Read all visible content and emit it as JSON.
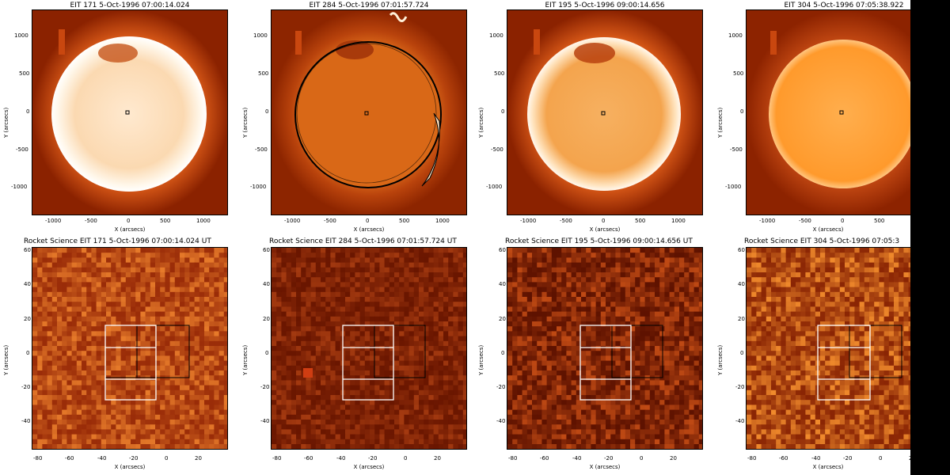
{
  "top_row": [
    {
      "title": "EIT 171  5-Oct-1996 07:00:14.024",
      "xlabel": "X (arcsecs)",
      "ylabel": "Y (arcsecs)",
      "xticks": [
        "-1000",
        "-500",
        "0",
        "500",
        "1000"
      ],
      "yticks": [
        "1000",
        "500",
        "0",
        "-500",
        "-1000"
      ]
    },
    {
      "title": "EIT 284  5-Oct-1996 07:01:57.724",
      "xlabel": "X (arcsecs)",
      "ylabel": "Y (arcsecs)",
      "xticks": [
        "-1000",
        "-500",
        "0",
        "500",
        "1000"
      ],
      "yticks": [
        "1000",
        "500",
        "0",
        "-500",
        "-1000"
      ]
    },
    {
      "title": "EIT 195  5-Oct-1996 09:00:14.656",
      "xlabel": "X (arcsecs)",
      "ylabel": "Y (arcsecs)",
      "xticks": [
        "-1000",
        "-500",
        "0",
        "500",
        "1000"
      ],
      "yticks": [
        "1000",
        "500",
        "0",
        "-500",
        "-1000"
      ]
    },
    {
      "title": "EIT 304  5-Oct-1996 07:05:38.922",
      "xlabel": "X (arcsecs)",
      "ylabel": "Y (arcsecs)",
      "xticks": [
        "-1000",
        "-500",
        "0",
        "500"
      ],
      "yticks": [
        "1000",
        "500",
        "0",
        "-500",
        "-1000"
      ]
    }
  ],
  "bottom_row": [
    {
      "title": "Rocket Science EIT 171  5-Oct-1996 07:00:14.024 UT",
      "xlabel": "X (arcsecs)",
      "ylabel": "Y (arcsecs)",
      "xticks": [
        "-80",
        "-60",
        "-40",
        "-20",
        "0",
        "20"
      ],
      "yticks": [
        "60",
        "40",
        "20",
        "0",
        "-20",
        "-40"
      ]
    },
    {
      "title": "Rocket Science EIT 284  5-Oct-1996 07:01:57.724 UT",
      "xlabel": "X (arcsecs)",
      "ylabel": "Y (arcsecs)",
      "xticks": [
        "-80",
        "-60",
        "-40",
        "-20",
        "0",
        "20"
      ],
      "yticks": [
        "60",
        "40",
        "20",
        "0",
        "-20",
        "-40"
      ]
    },
    {
      "title": "Rocket Science EIT 195  5-Oct-1996 09:00:14.656 UT",
      "xlabel": "X (arcsecs)",
      "ylabel": "Y (arcsecs)",
      "xticks": [
        "-80",
        "-60",
        "-40",
        "-20",
        "0",
        "20"
      ],
      "yticks": [
        "60",
        "40",
        "20",
        "0",
        "-20",
        "-40"
      ]
    },
    {
      "title": "Rocket Science EIT 304  5-Oct-1996 07:05:3",
      "xlabel": "X (arcsecs)",
      "ylabel": "Y (arcsecs)",
      "xticks": [
        "-80",
        "-60",
        "-40",
        "-20",
        "0",
        "20"
      ],
      "yticks": [
        "60",
        "40",
        "20",
        "0",
        "-20",
        "-40"
      ]
    }
  ],
  "colors": {
    "limb": "#fff3da",
    "disk_171": "#ffe7c8",
    "disk_284": "#d86416",
    "disk_195": "#f7b360",
    "disk_304": "#ff9a2a",
    "corona": "#b83605",
    "bg": "#7e1d00"
  }
}
